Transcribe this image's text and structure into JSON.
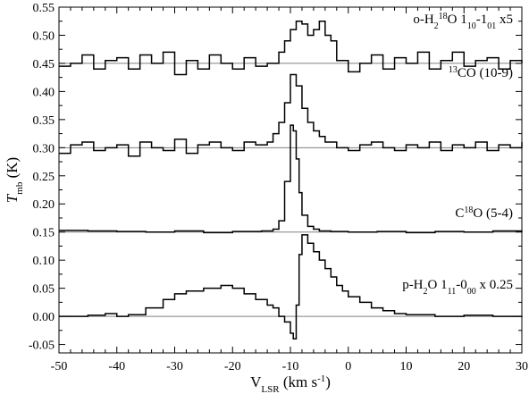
{
  "chart_data": {
    "type": "line",
    "step": true,
    "xlabel": {
      "main": "V",
      "sub": "LSR",
      "rest": " (km s",
      "sup": "-1",
      "end": ")"
    },
    "ylabel": {
      "main": "T",
      "sub": "mb",
      "rest": " (K)"
    },
    "xlim": [
      -50,
      30
    ],
    "ylim": [
      -0.065,
      0.55
    ],
    "xticks": [
      -50,
      -40,
      -30,
      -20,
      -10,
      0,
      10,
      20,
      30
    ],
    "xtick_labels": [
      "-50",
      "-40",
      "-30",
      "-20",
      "-10",
      "0",
      "10",
      "20",
      "30"
    ],
    "yticks": [
      -0.05,
      0.0,
      0.05,
      0.1,
      0.15,
      0.2,
      0.25,
      0.3,
      0.35,
      0.4,
      0.45,
      0.5,
      0.55
    ],
    "ytick_labels": [
      "-0.05",
      "0.00",
      "0.05",
      "0.10",
      "0.15",
      "0.20",
      "0.25",
      "0.30",
      "0.35",
      "0.40",
      "0.45",
      "0.50",
      "0.55"
    ],
    "baseline_color": "#808080",
    "line_color": "#000000",
    "series": [
      {
        "label_parts": [
          "o-H",
          {
            "sub": "2"
          },
          {
            "sup": "18"
          },
          "O 1",
          {
            "sub": "10"
          },
          "-1",
          {
            "sub": "01"
          },
          " x5"
        ],
        "baseline": 0.45,
        "x": [
          -50,
          -48,
          -46,
          -44,
          -42,
          -40,
          -38,
          -36,
          -34,
          -32,
          -30,
          -28,
          -26,
          -24,
          -22,
          -20,
          -18,
          -16,
          -14,
          -12,
          -11,
          -10,
          -9,
          -8,
          -7,
          -6,
          -5,
          -4,
          -3,
          -2,
          0,
          2,
          4,
          6,
          8,
          10,
          12,
          14,
          16,
          18,
          20,
          22,
          24,
          26,
          28,
          30
        ],
        "y": [
          0.445,
          0.45,
          0.465,
          0.44,
          0.455,
          0.46,
          0.44,
          0.465,
          0.45,
          0.47,
          0.43,
          0.455,
          0.44,
          0.465,
          0.45,
          0.44,
          0.46,
          0.445,
          0.45,
          0.47,
          0.49,
          0.51,
          0.525,
          0.52,
          0.5,
          0.51,
          0.525,
          0.5,
          0.49,
          0.455,
          0.435,
          0.45,
          0.465,
          0.44,
          0.46,
          0.45,
          0.47,
          0.44,
          0.455,
          0.47,
          0.445,
          0.455,
          0.46,
          0.44,
          0.455,
          0.45
        ]
      },
      {
        "label_parts": [
          {
            "sup": "13"
          },
          "CO (10-9)"
        ],
        "baseline": 0.3,
        "x": [
          -50,
          -48,
          -46,
          -44,
          -42,
          -40,
          -38,
          -36,
          -34,
          -32,
          -30,
          -28,
          -26,
          -24,
          -22,
          -20,
          -18,
          -16,
          -14,
          -13,
          -12,
          -11,
          -10,
          -9,
          -8,
          -7,
          -6,
          -5,
          -4,
          -2,
          0,
          2,
          4,
          6,
          8,
          10,
          12,
          14,
          16,
          18,
          20,
          22,
          24,
          26,
          28,
          30
        ],
        "y": [
          0.29,
          0.305,
          0.31,
          0.295,
          0.3,
          0.305,
          0.285,
          0.31,
          0.3,
          0.295,
          0.315,
          0.29,
          0.305,
          0.31,
          0.3,
          0.295,
          0.31,
          0.305,
          0.31,
          0.325,
          0.345,
          0.38,
          0.43,
          0.41,
          0.37,
          0.345,
          0.33,
          0.32,
          0.31,
          0.3,
          0.295,
          0.305,
          0.31,
          0.3,
          0.295,
          0.305,
          0.3,
          0.31,
          0.295,
          0.305,
          0.3,
          0.31,
          0.295,
          0.305,
          0.3,
          0.31
        ]
      },
      {
        "label_parts": [
          "C",
          {
            "sup": "18"
          },
          "O (5-4)"
        ],
        "baseline": 0.15,
        "x": [
          -50,
          -45,
          -40,
          -35,
          -30,
          -25,
          -20,
          -15,
          -13,
          -12,
          -11,
          -10,
          -9.5,
          -9,
          -8.5,
          -8,
          -7,
          -6,
          -5,
          -3,
          0,
          5,
          10,
          15,
          20,
          25,
          30
        ],
        "y": [
          0.153,
          0.152,
          0.151,
          0.15,
          0.152,
          0.149,
          0.151,
          0.152,
          0.155,
          0.17,
          0.24,
          0.34,
          0.33,
          0.28,
          0.22,
          0.18,
          0.16,
          0.155,
          0.152,
          0.151,
          0.15,
          0.151,
          0.149,
          0.151,
          0.15,
          0.152,
          0.15
        ],
        "label_y": 0.17
      },
      {
        "label_parts": [
          "p-H",
          {
            "sub": "2"
          },
          "O 1",
          {
            "sub": "11"
          },
          "-0",
          {
            "sub": "00"
          },
          " x 0.25"
        ],
        "baseline": 0.0,
        "x": [
          -50,
          -45,
          -42,
          -40,
          -38,
          -35,
          -32,
          -30,
          -28,
          -25,
          -22,
          -20,
          -18,
          -16,
          -14,
          -13,
          -12,
          -11,
          -10,
          -9.5,
          -9,
          -8.5,
          -8,
          -7,
          -6,
          -5,
          -4,
          -3,
          -2,
          -1,
          0,
          2,
          4,
          6,
          8,
          10,
          15,
          20,
          25,
          30
        ],
        "y": [
          0.0,
          0.002,
          0.005,
          0.0,
          0.003,
          0.015,
          0.03,
          0.04,
          0.045,
          0.05,
          0.055,
          0.05,
          0.04,
          0.03,
          0.02,
          0.015,
          0.0,
          -0.01,
          -0.03,
          -0.04,
          0.02,
          0.11,
          0.145,
          0.13,
          0.115,
          0.1,
          0.085,
          0.07,
          0.055,
          0.045,
          0.035,
          0.025,
          0.015,
          0.01,
          0.005,
          0.003,
          0.0,
          0.002,
          0.0,
          0.001
        ],
        "label_y": 0.043
      }
    ]
  }
}
